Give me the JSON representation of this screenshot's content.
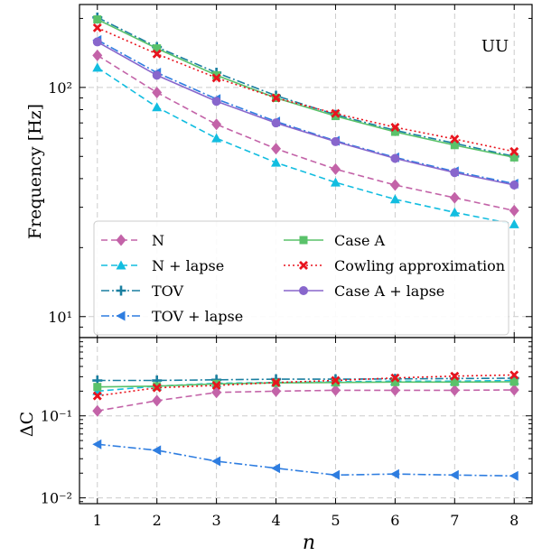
{
  "chart_data": [
    {
      "type": "line",
      "panel": "top",
      "scale_y": "log",
      "ylabel": "Frequency [Hz]",
      "annotation": "UU",
      "x": [
        1,
        2,
        3,
        4,
        5,
        6,
        7,
        8
      ],
      "xlim": [
        0.7,
        8.3
      ],
      "ylim": [
        8.1,
        230
      ],
      "y_ticks": [
        {
          "value": 10,
          "label": "10¹"
        },
        {
          "value": 100,
          "label": "10²"
        }
      ],
      "grid": true,
      "legend_position": "lower-left",
      "series": [
        {
          "name": "N",
          "color": "#c363a8",
          "dash": "7,4",
          "marker": "diamond",
          "values": [
            138,
            95,
            69,
            54,
            44,
            37.5,
            33,
            29
          ]
        },
        {
          "name": "N + lapse",
          "color": "#12bde0",
          "dash": "7,4",
          "marker": "triangle-up",
          "values": [
            122,
            82,
            60,
            47,
            38.5,
            32.5,
            28.5,
            25.3
          ]
        },
        {
          "name": "TOV",
          "color": "#1a7fa0",
          "dash": "9,3,2,3",
          "marker": "plus",
          "values": [
            202,
            150,
            116,
            92,
            76,
            65,
            57,
            50
          ]
        },
        {
          "name": "TOV + lapse",
          "color": "#2e7de0",
          "dash": "9,3,2,3",
          "marker": "triangle-left",
          "values": [
            161,
            116,
            89,
            71,
            58.5,
            49.5,
            43,
            38
          ]
        },
        {
          "name": "Case A",
          "color": "#5ac26a",
          "dash": "",
          "marker": "square",
          "values": [
            198,
            148,
            113,
            90,
            75,
            64,
            56,
            49.5
          ]
        },
        {
          "name": "Cowling approximation",
          "color": "#e8141e",
          "dash": "2,3",
          "marker": "x",
          "values": [
            182,
            140,
            110,
            90,
            77,
            67,
            59.5,
            52.5
          ]
        },
        {
          "name": "Case A + lapse",
          "color": "#8866cc",
          "dash": "",
          "marker": "circle",
          "values": [
            158,
            113,
            87,
            70,
            58,
            49,
            42.5,
            37.5
          ]
        }
      ]
    },
    {
      "type": "line",
      "panel": "bottom",
      "scale_y": "log",
      "ylabel": "ΔC",
      "xlabel": "n",
      "x": [
        1,
        2,
        3,
        4,
        5,
        6,
        7,
        8
      ],
      "x_tick_labels": [
        "1",
        "2",
        "3",
        "4",
        "5",
        "6",
        "7",
        "8"
      ],
      "xlim": [
        0.7,
        8.3
      ],
      "ylim": [
        0.0085,
        0.9
      ],
      "y_ticks": [
        {
          "value": 0.01,
          "label": "10⁻²"
        },
        {
          "value": 0.1,
          "label": "10⁻¹"
        }
      ],
      "grid": true,
      "series": [
        {
          "name": "N",
          "color": "#c363a8",
          "dash": "7,4",
          "marker": "diamond",
          "values": [
            0.115,
            0.153,
            0.193,
            0.2,
            0.205,
            0.205,
            0.205,
            0.207
          ]
        },
        {
          "name": "N + lapse",
          "color": "#12bde0",
          "dash": "7,4",
          "marker": "triangle-up",
          "values": [
            0.2,
            0.23,
            0.25,
            0.255,
            0.26,
            0.265,
            0.265,
            0.27
          ]
        },
        {
          "name": "TOV",
          "color": "#1a7fa0",
          "dash": "9,3,2,3",
          "marker": "plus",
          "values": [
            0.27,
            0.27,
            0.275,
            0.28,
            0.28,
            0.282,
            0.285,
            0.288
          ]
        },
        {
          "name": "TOV + lapse",
          "color": "#2e7de0",
          "dash": "9,3,2,3",
          "marker": "triangle-left",
          "values": [
            0.045,
            0.038,
            0.028,
            0.023,
            0.019,
            0.0195,
            0.019,
            0.0185
          ]
        },
        {
          "name": "Case A",
          "color": "#5ac26a",
          "dash": "",
          "marker": "square",
          "values": [
            0.225,
            0.23,
            0.245,
            0.252,
            0.255,
            0.258,
            0.258,
            0.26
          ]
        },
        {
          "name": "Cowling approximation",
          "color": "#e8141e",
          "dash": "2,3",
          "marker": "x",
          "values": [
            0.175,
            0.22,
            0.235,
            0.255,
            0.27,
            0.29,
            0.305,
            0.315
          ]
        }
      ]
    }
  ]
}
